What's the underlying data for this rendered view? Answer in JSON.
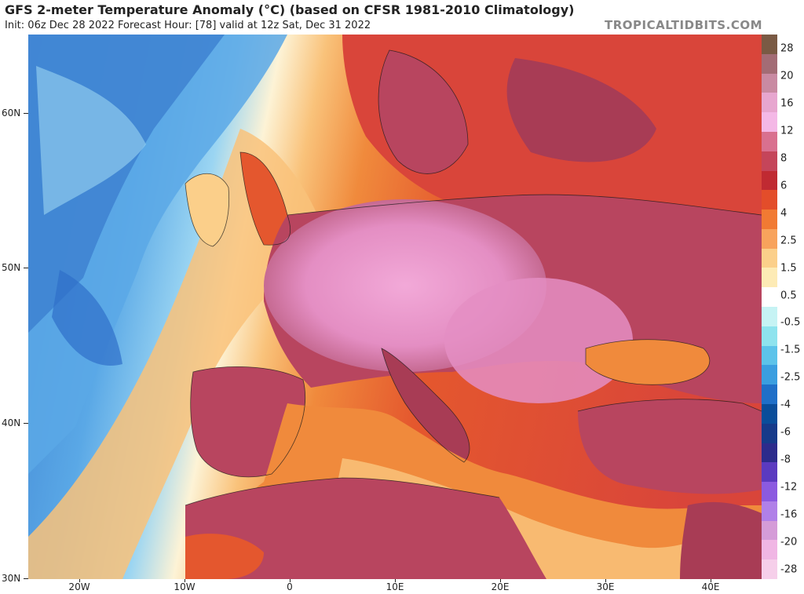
{
  "header": {
    "title": "GFS 2-meter Temperature Anomaly (°C) (based on CFSR 1981-2010 Climatology)",
    "subtitle": "Init: 06z Dec 28 2022   Forecast Hour: [78]   valid at 12z Sat, Dec 31 2022",
    "site": "TROPICALTIDBITS.COM"
  },
  "axes": {
    "lat_labels": [
      "60N",
      "50N",
      "40N",
      "30N"
    ],
    "lon_labels": [
      "20W",
      "10W",
      "0",
      "10E",
      "20E",
      "30E",
      "40E"
    ]
  },
  "colorbar": {
    "labels": [
      "28",
      "20",
      "16",
      "12",
      "8",
      "6",
      "4",
      "2.5",
      "1.5",
      "0.5",
      "-0.5",
      "-1.5",
      "-2.5",
      "-4",
      "-6",
      "-8",
      "-12",
      "-16",
      "-20",
      "-28"
    ],
    "colors": [
      "#7a5a44",
      "#a36c75",
      "#c98aa2",
      "#e7a6cf",
      "#f4b8e6",
      "#d9708f",
      "#c5455a",
      "#c02a32",
      "#e34d2a",
      "#f17a33",
      "#f8a35c",
      "#fbcf8a",
      "#fdebb5",
      "#ffffff",
      "#c6f3f4",
      "#8ee3ee",
      "#5cc3ea",
      "#3a9ee0",
      "#1f6fc8",
      "#0a4d9a",
      "#163a8a",
      "#2c2b8c",
      "#5b3ac0",
      "#8b5ae0",
      "#b080e8",
      "#d59cd8",
      "#f0b6e4",
      "#f6cfea"
    ]
  },
  "map": {
    "palette": {
      "ocean_cold_deep": "#2f6fc9",
      "ocean_cold": "#5aa8e6",
      "ocean_cool": "#9bd5f2",
      "near_zero": "#fdf3d6",
      "warm_light": "#f9c27a",
      "warm": "#f08a3c",
      "warm_strong": "#e4572e",
      "hot": "#c8344a",
      "hot_land": "#b8455f",
      "very_hot_land": "#e48ec3",
      "pink_peak": "#f2a9d8"
    }
  }
}
